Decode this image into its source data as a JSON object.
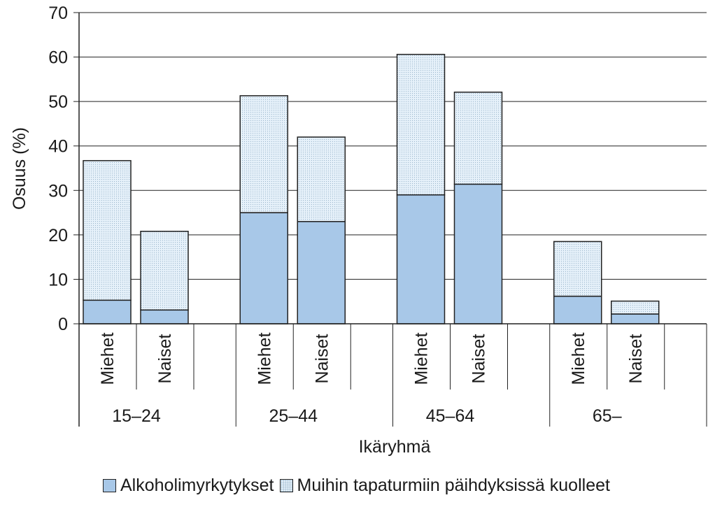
{
  "chart_data": {
    "type": "bar",
    "stacked": true,
    "groups": [
      "15–24",
      "25–44",
      "45–64",
      "65–"
    ],
    "subcategories": [
      "Miehet",
      "Naiset"
    ],
    "series": [
      {
        "name": "Alkoholimyrkytykset",
        "color": "#a8c8e8",
        "values": [
          [
            5.3,
            3.1
          ],
          [
            25.0,
            23.0
          ],
          [
            29.0,
            31.4
          ],
          [
            6.2,
            2.2
          ]
        ]
      },
      {
        "name": "Muihin tapaturmiin päihdyksissä kuolleet",
        "color": "#e6f1fa",
        "values": [
          [
            31.4,
            17.7
          ],
          [
            26.3,
            19.0
          ],
          [
            31.6,
            20.7
          ],
          [
            12.3,
            2.9
          ]
        ]
      }
    ],
    "ylabel": "Osuus (%)",
    "xlabel": "Ikäryhmä",
    "ylim": [
      0,
      70
    ],
    "yticks": [
      0,
      10,
      20,
      30,
      40,
      50,
      60,
      70
    ],
    "grid": true,
    "legend_position": "bottom"
  }
}
